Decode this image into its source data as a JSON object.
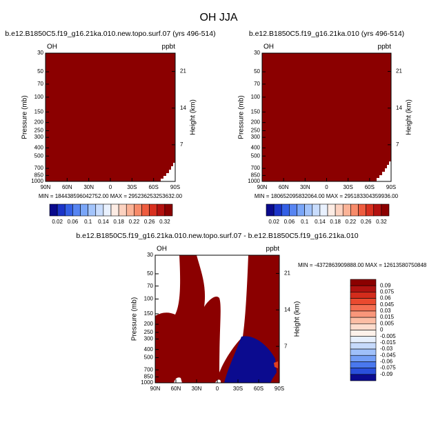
{
  "title": "OH JJA",
  "chart_data": [
    {
      "type": "contour",
      "title": "b.e12.B1850C5.f19_g16.21ka.010.new.topo.surf.07 (yrs 496-514)",
      "left_label": "OH",
      "right_label": "ppbt",
      "ylabel": "Pressure (mb)",
      "y2label": "Height (km)",
      "stats": "MIN = 184438596042752.00  MAX = 295236253253632.00",
      "xlim": [
        90,
        -90
      ],
      "xticks": [
        {
          "value": 90,
          "label": "90N"
        },
        {
          "value": 60,
          "label": "60N"
        },
        {
          "value": 30,
          "label": "30N"
        },
        0,
        {
          "value": -30,
          "label": "30S"
        },
        {
          "value": -60,
          "label": "60S"
        },
        {
          "value": -90,
          "label": "90S"
        }
      ],
      "ylim": [
        1000,
        30
      ],
      "log_scale_y": true,
      "yticks": [
        1000,
        850,
        700,
        500,
        400,
        300,
        250,
        200,
        150,
        100,
        70,
        50,
        30
      ],
      "y2lim": [
        0,
        24.5
      ],
      "y2ticks": [
        7,
        14,
        21
      ],
      "colorbar": {
        "orientation": "horizontal",
        "colors": [
          "#0a0a8c",
          "#1b34c8",
          "#3460e6",
          "#5785f2",
          "#7aa6f8",
          "#a3c4fb",
          "#c8dcfd",
          "#e9f1fe",
          "#fdece4",
          "#fcd2c0",
          "#fbb397",
          "#f78b6a",
          "#ee5c3f",
          "#d8301f",
          "#b3110f",
          "#8b0000"
        ],
        "labels": [
          0.02,
          0.06,
          0.1,
          0.14,
          0.18,
          0.22,
          0.26,
          0.32
        ]
      }
    },
    {
      "type": "contour",
      "title": "b.e12.B1850C5.f19_g16.21ka.010 (yrs 496-514)",
      "left_label": "OH",
      "right_label": "ppbt",
      "ylabel": "Pressure (mb)",
      "y2label": "Height (km)",
      "stats": "MIN = 180652095832064.00  MAX = 295183304359936.00",
      "xlim": [
        90,
        -90
      ],
      "xticks": [
        {
          "value": 90,
          "label": "90N"
        },
        {
          "value": 60,
          "label": "60N"
        },
        {
          "value": 30,
          "label": "30N"
        },
        0,
        {
          "value": -30,
          "label": "30S"
        },
        {
          "value": -60,
          "label": "60S"
        },
        {
          "value": -90,
          "label": "90S"
        }
      ],
      "ylim": [
        1000,
        30
      ],
      "log_scale_y": true,
      "yticks": [
        1000,
        850,
        700,
        500,
        400,
        300,
        250,
        200,
        150,
        100,
        70,
        50,
        30
      ],
      "y2lim": [
        0,
        24.5
      ],
      "y2ticks": [
        7,
        14,
        21
      ],
      "colorbar": {
        "orientation": "horizontal",
        "colors": [
          "#0a0a8c",
          "#1b34c8",
          "#3460e6",
          "#5785f2",
          "#7aa6f8",
          "#a3c4fb",
          "#c8dcfd",
          "#e9f1fe",
          "#fdece4",
          "#fcd2c0",
          "#fbb397",
          "#f78b6a",
          "#ee5c3f",
          "#d8301f",
          "#b3110f",
          "#8b0000"
        ],
        "labels": [
          0.02,
          0.06,
          0.1,
          0.14,
          0.18,
          0.22,
          0.26,
          0.32
        ]
      }
    },
    {
      "type": "contour",
      "title": "b.e12.B1850C5.f19_g16.21ka.010.new.topo.surf.07 - b.e12.B1850C5.f19_g16.21ka.010",
      "left_label": "OH",
      "right_label": "ppbt",
      "ylabel": "Pressure (mb)",
      "y2label": "Height (km)",
      "stats": "MIN = -4372863909888.00  MAX = 12613580750848",
      "xlim": [
        90,
        -90
      ],
      "xticks": [
        {
          "value": 90,
          "label": "90N"
        },
        {
          "value": 60,
          "label": "60N"
        },
        {
          "value": 30,
          "label": "30N"
        },
        0,
        {
          "value": -30,
          "label": "30S"
        },
        {
          "value": -60,
          "label": "60S"
        },
        {
          "value": -90,
          "label": "90S"
        }
      ],
      "ylim": [
        1000,
        30
      ],
      "log_scale_y": true,
      "yticks": [
        1000,
        850,
        700,
        500,
        400,
        300,
        250,
        200,
        150,
        100,
        70,
        50,
        30
      ],
      "y2lim": [
        0,
        24.5
      ],
      "y2ticks": [
        7,
        14,
        21
      ],
      "colorbar": {
        "orientation": "vertical",
        "colors": [
          "#8b0000",
          "#b01210",
          "#d32c1c",
          "#ea4a2f",
          "#f46f52",
          "#f9967a",
          "#fcbda4",
          "#fddccd",
          "#fdf1ea",
          "#e6effd",
          "#c6dafc",
          "#9fc0fa",
          "#739ef6",
          "#4a78ee",
          "#2a4fdb",
          "#0b0b8f"
        ],
        "labels": [
          0.09,
          0.075,
          0.06,
          0.045,
          0.03,
          0.015,
          0.005,
          0,
          -0.005,
          -0.015,
          -0.03,
          -0.045,
          -0.06,
          -0.075,
          -0.09
        ]
      }
    }
  ]
}
